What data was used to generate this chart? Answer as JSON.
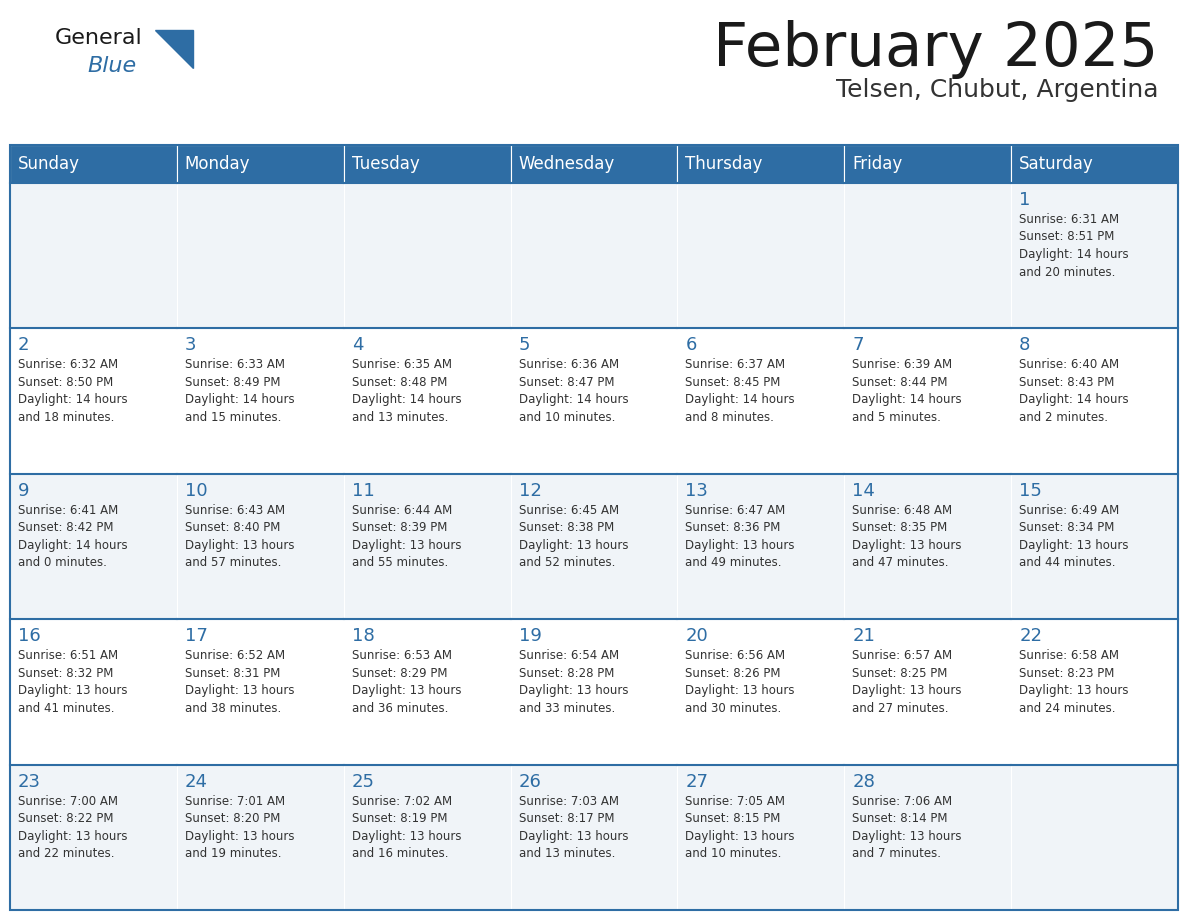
{
  "title": "February 2025",
  "subtitle": "Telsen, Chubut, Argentina",
  "header_color": "#2e6da4",
  "header_text_color": "#ffffff",
  "cell_bg_even": "#f0f4f8",
  "cell_bg_odd": "#ffffff",
  "cell_border_color": "#2e6da4",
  "day_number_color": "#2e6da4",
  "text_color": "#333333",
  "days_of_week": [
    "Sunday",
    "Monday",
    "Tuesday",
    "Wednesday",
    "Thursday",
    "Friday",
    "Saturday"
  ],
  "weeks": [
    [
      {
        "day": "",
        "info": ""
      },
      {
        "day": "",
        "info": ""
      },
      {
        "day": "",
        "info": ""
      },
      {
        "day": "",
        "info": ""
      },
      {
        "day": "",
        "info": ""
      },
      {
        "day": "",
        "info": ""
      },
      {
        "day": "1",
        "info": "Sunrise: 6:31 AM\nSunset: 8:51 PM\nDaylight: 14 hours\nand 20 minutes."
      }
    ],
    [
      {
        "day": "2",
        "info": "Sunrise: 6:32 AM\nSunset: 8:50 PM\nDaylight: 14 hours\nand 18 minutes."
      },
      {
        "day": "3",
        "info": "Sunrise: 6:33 AM\nSunset: 8:49 PM\nDaylight: 14 hours\nand 15 minutes."
      },
      {
        "day": "4",
        "info": "Sunrise: 6:35 AM\nSunset: 8:48 PM\nDaylight: 14 hours\nand 13 minutes."
      },
      {
        "day": "5",
        "info": "Sunrise: 6:36 AM\nSunset: 8:47 PM\nDaylight: 14 hours\nand 10 minutes."
      },
      {
        "day": "6",
        "info": "Sunrise: 6:37 AM\nSunset: 8:45 PM\nDaylight: 14 hours\nand 8 minutes."
      },
      {
        "day": "7",
        "info": "Sunrise: 6:39 AM\nSunset: 8:44 PM\nDaylight: 14 hours\nand 5 minutes."
      },
      {
        "day": "8",
        "info": "Sunrise: 6:40 AM\nSunset: 8:43 PM\nDaylight: 14 hours\nand 2 minutes."
      }
    ],
    [
      {
        "day": "9",
        "info": "Sunrise: 6:41 AM\nSunset: 8:42 PM\nDaylight: 14 hours\nand 0 minutes."
      },
      {
        "day": "10",
        "info": "Sunrise: 6:43 AM\nSunset: 8:40 PM\nDaylight: 13 hours\nand 57 minutes."
      },
      {
        "day": "11",
        "info": "Sunrise: 6:44 AM\nSunset: 8:39 PM\nDaylight: 13 hours\nand 55 minutes."
      },
      {
        "day": "12",
        "info": "Sunrise: 6:45 AM\nSunset: 8:38 PM\nDaylight: 13 hours\nand 52 minutes."
      },
      {
        "day": "13",
        "info": "Sunrise: 6:47 AM\nSunset: 8:36 PM\nDaylight: 13 hours\nand 49 minutes."
      },
      {
        "day": "14",
        "info": "Sunrise: 6:48 AM\nSunset: 8:35 PM\nDaylight: 13 hours\nand 47 minutes."
      },
      {
        "day": "15",
        "info": "Sunrise: 6:49 AM\nSunset: 8:34 PM\nDaylight: 13 hours\nand 44 minutes."
      }
    ],
    [
      {
        "day": "16",
        "info": "Sunrise: 6:51 AM\nSunset: 8:32 PM\nDaylight: 13 hours\nand 41 minutes."
      },
      {
        "day": "17",
        "info": "Sunrise: 6:52 AM\nSunset: 8:31 PM\nDaylight: 13 hours\nand 38 minutes."
      },
      {
        "day": "18",
        "info": "Sunrise: 6:53 AM\nSunset: 8:29 PM\nDaylight: 13 hours\nand 36 minutes."
      },
      {
        "day": "19",
        "info": "Sunrise: 6:54 AM\nSunset: 8:28 PM\nDaylight: 13 hours\nand 33 minutes."
      },
      {
        "day": "20",
        "info": "Sunrise: 6:56 AM\nSunset: 8:26 PM\nDaylight: 13 hours\nand 30 minutes."
      },
      {
        "day": "21",
        "info": "Sunrise: 6:57 AM\nSunset: 8:25 PM\nDaylight: 13 hours\nand 27 minutes."
      },
      {
        "day": "22",
        "info": "Sunrise: 6:58 AM\nSunset: 8:23 PM\nDaylight: 13 hours\nand 24 minutes."
      }
    ],
    [
      {
        "day": "23",
        "info": "Sunrise: 7:00 AM\nSunset: 8:22 PM\nDaylight: 13 hours\nand 22 minutes."
      },
      {
        "day": "24",
        "info": "Sunrise: 7:01 AM\nSunset: 8:20 PM\nDaylight: 13 hours\nand 19 minutes."
      },
      {
        "day": "25",
        "info": "Sunrise: 7:02 AM\nSunset: 8:19 PM\nDaylight: 13 hours\nand 16 minutes."
      },
      {
        "day": "26",
        "info": "Sunrise: 7:03 AM\nSunset: 8:17 PM\nDaylight: 13 hours\nand 13 minutes."
      },
      {
        "day": "27",
        "info": "Sunrise: 7:05 AM\nSunset: 8:15 PM\nDaylight: 13 hours\nand 10 minutes."
      },
      {
        "day": "28",
        "info": "Sunrise: 7:06 AM\nSunset: 8:14 PM\nDaylight: 13 hours\nand 7 minutes."
      },
      {
        "day": "",
        "info": ""
      }
    ]
  ],
  "logo_text_general": "General",
  "logo_text_blue": "Blue",
  "logo_color_general": "#1a1a1a",
  "logo_color_blue": "#2e6da4",
  "logo_triangle_color": "#2e6da4"
}
